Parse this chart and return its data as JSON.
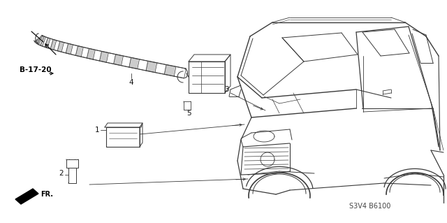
{
  "background_color": "#ffffff",
  "line_color": "#3a3a3a",
  "text_color": "#111111",
  "fig_width": 6.4,
  "fig_height": 3.19,
  "dpi": 100,
  "part_code": "S3V4 B6100",
  "ref_label": "B-17-20"
}
